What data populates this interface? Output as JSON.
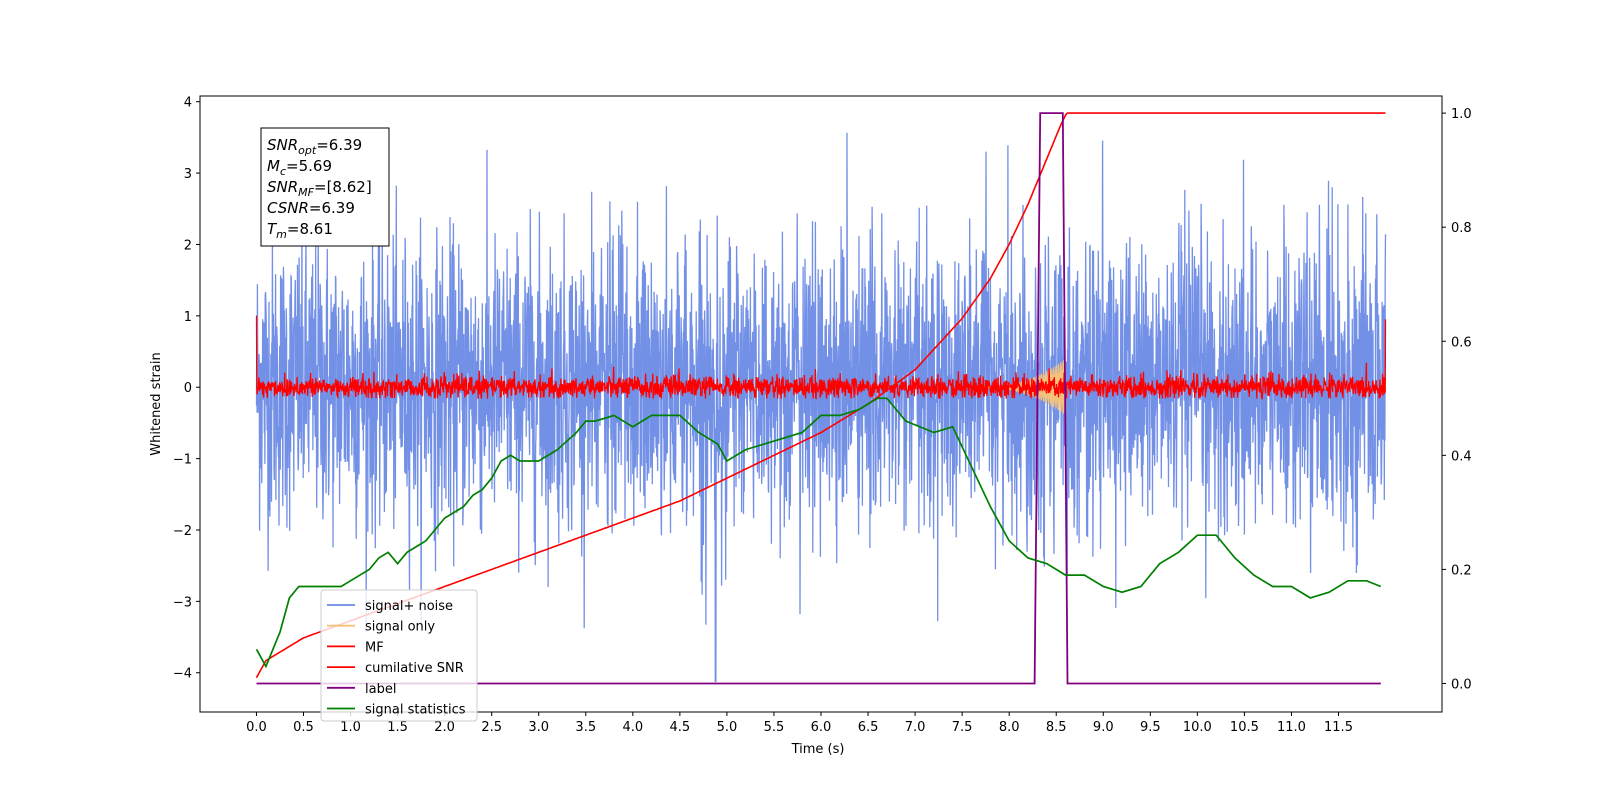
{
  "chart_data": {
    "type": "line",
    "xlabel": "Time (s)",
    "ylabel": "Whitened strain",
    "xlim": [
      -0.6,
      12.6
    ],
    "ylim_left": [
      -4.55,
      4.08
    ],
    "ylim_right": [
      -0.05,
      1.03
    ],
    "xticks": [
      "0.0",
      "0.5",
      "1.0",
      "1.5",
      "2.0",
      "2.5",
      "3.0",
      "3.5",
      "4.0",
      "4.5",
      "5.0",
      "5.5",
      "6.0",
      "6.5",
      "7.0",
      "7.5",
      "8.0",
      "8.5",
      "9.0",
      "9.5",
      "10.0",
      "10.5",
      "11.0",
      "11.5"
    ],
    "yticks_left": [
      "4",
      "3",
      "2",
      "1",
      "0",
      "−1",
      "−2",
      "−3",
      "−4"
    ],
    "yticks_right": [
      "1.0",
      "0.8",
      "0.6",
      "0.4",
      "0.2",
      "0.0"
    ],
    "grid": false,
    "legend_position": "lower left",
    "colors": {
      "signal_noise": "#6b8ae6",
      "signal_only": "#f5c27a",
      "mf": "#ff0000",
      "cumulative_snr": "#ff0000",
      "label": "#800080",
      "signal_statistics": "#008000"
    },
    "annotation": {
      "lines": [
        {
          "base": "SNR",
          "sub": "opt",
          "value": "=6.39"
        },
        {
          "base": "M",
          "sub": "c",
          "value": "=5.69"
        },
        {
          "base": "SNR",
          "sub": "MF",
          "value": "=[8.62]"
        },
        {
          "base": "CSNR",
          "sub": "",
          "value": "=6.39"
        },
        {
          "base": "T",
          "sub": "m",
          "value": "=8.61"
        }
      ]
    },
    "series": [
      {
        "name": "signal+ noise",
        "axis": "left",
        "style": "noise",
        "x_range": [
          0.0,
          12.0
        ],
        "band_upper": 2.2,
        "band_lower": -2.4,
        "peak_max": 3.68,
        "outlier": {
          "x": 4.88,
          "y": -4.12
        }
      },
      {
        "name": "signal only",
        "axis": "left",
        "style": "chirp",
        "x_range": [
          7.6,
          8.6
        ],
        "peak_amplitude": 0.4
      },
      {
        "name": "MF",
        "axis": "left",
        "style": "noise",
        "x_range": [
          0.0,
          12.0
        ],
        "band_upper": 0.25,
        "band_lower": -0.15,
        "edge_values": [
          1.0,
          -0.1,
          0.95
        ]
      },
      {
        "name": "cumilative SNR",
        "axis": "right",
        "x": [
          0.0,
          0.1,
          0.5,
          1.0,
          1.5,
          2.0,
          2.5,
          3.0,
          3.5,
          4.0,
          4.5,
          5.0,
          5.5,
          6.0,
          6.5,
          7.0,
          7.5,
          7.8,
          8.0,
          8.2,
          8.4,
          8.5,
          8.55,
          8.61,
          9.0,
          10.0,
          11.0,
          12.0
        ],
        "values": [
          0.01,
          0.04,
          0.08,
          0.11,
          0.14,
          0.17,
          0.2,
          0.23,
          0.26,
          0.29,
          0.32,
          0.36,
          0.4,
          0.44,
          0.49,
          0.55,
          0.64,
          0.71,
          0.77,
          0.84,
          0.92,
          0.96,
          0.98,
          1.0,
          1.0,
          1.0,
          1.0,
          1.0
        ]
      },
      {
        "name": "label",
        "axis": "right",
        "x": [
          0.0,
          8.27,
          8.33,
          8.57,
          8.62,
          11.95
        ],
        "values": [
          0.0,
          0.0,
          1.0,
          1.0,
          0.0,
          0.0
        ]
      },
      {
        "name": "signal statistics",
        "axis": "right",
        "x": [
          0.0,
          0.1,
          0.25,
          0.35,
          0.45,
          0.6,
          0.8,
          0.9,
          1.0,
          1.2,
          1.3,
          1.4,
          1.5,
          1.6,
          1.7,
          1.8,
          2.0,
          2.2,
          2.3,
          2.4,
          2.5,
          2.6,
          2.7,
          2.8,
          3.0,
          3.2,
          3.4,
          3.5,
          3.6,
          3.8,
          4.0,
          4.2,
          4.3,
          4.5,
          4.7,
          4.9,
          5.0,
          5.2,
          5.4,
          5.6,
          5.8,
          6.0,
          6.2,
          6.4,
          6.5,
          6.6,
          6.7,
          6.9,
          7.2,
          7.4,
          7.6,
          7.8,
          8.0,
          8.2,
          8.4,
          8.5,
          8.6,
          8.8,
          9.0,
          9.2,
          9.4,
          9.6,
          9.8,
          10.0,
          10.2,
          10.4,
          10.6,
          10.8,
          11.0,
          11.2,
          11.4,
          11.6,
          11.8,
          11.95
        ],
        "values": [
          0.06,
          0.03,
          0.09,
          0.15,
          0.17,
          0.17,
          0.17,
          0.17,
          0.18,
          0.2,
          0.22,
          0.23,
          0.21,
          0.23,
          0.24,
          0.25,
          0.29,
          0.31,
          0.33,
          0.34,
          0.36,
          0.39,
          0.4,
          0.39,
          0.39,
          0.41,
          0.44,
          0.46,
          0.46,
          0.47,
          0.45,
          0.47,
          0.47,
          0.47,
          0.44,
          0.42,
          0.39,
          0.41,
          0.42,
          0.43,
          0.44,
          0.47,
          0.47,
          0.48,
          0.49,
          0.5,
          0.5,
          0.46,
          0.44,
          0.45,
          0.38,
          0.31,
          0.25,
          0.22,
          0.21,
          0.2,
          0.19,
          0.19,
          0.17,
          0.16,
          0.17,
          0.21,
          0.23,
          0.26,
          0.26,
          0.22,
          0.19,
          0.17,
          0.17,
          0.15,
          0.16,
          0.18,
          0.18,
          0.17
        ]
      }
    ]
  }
}
